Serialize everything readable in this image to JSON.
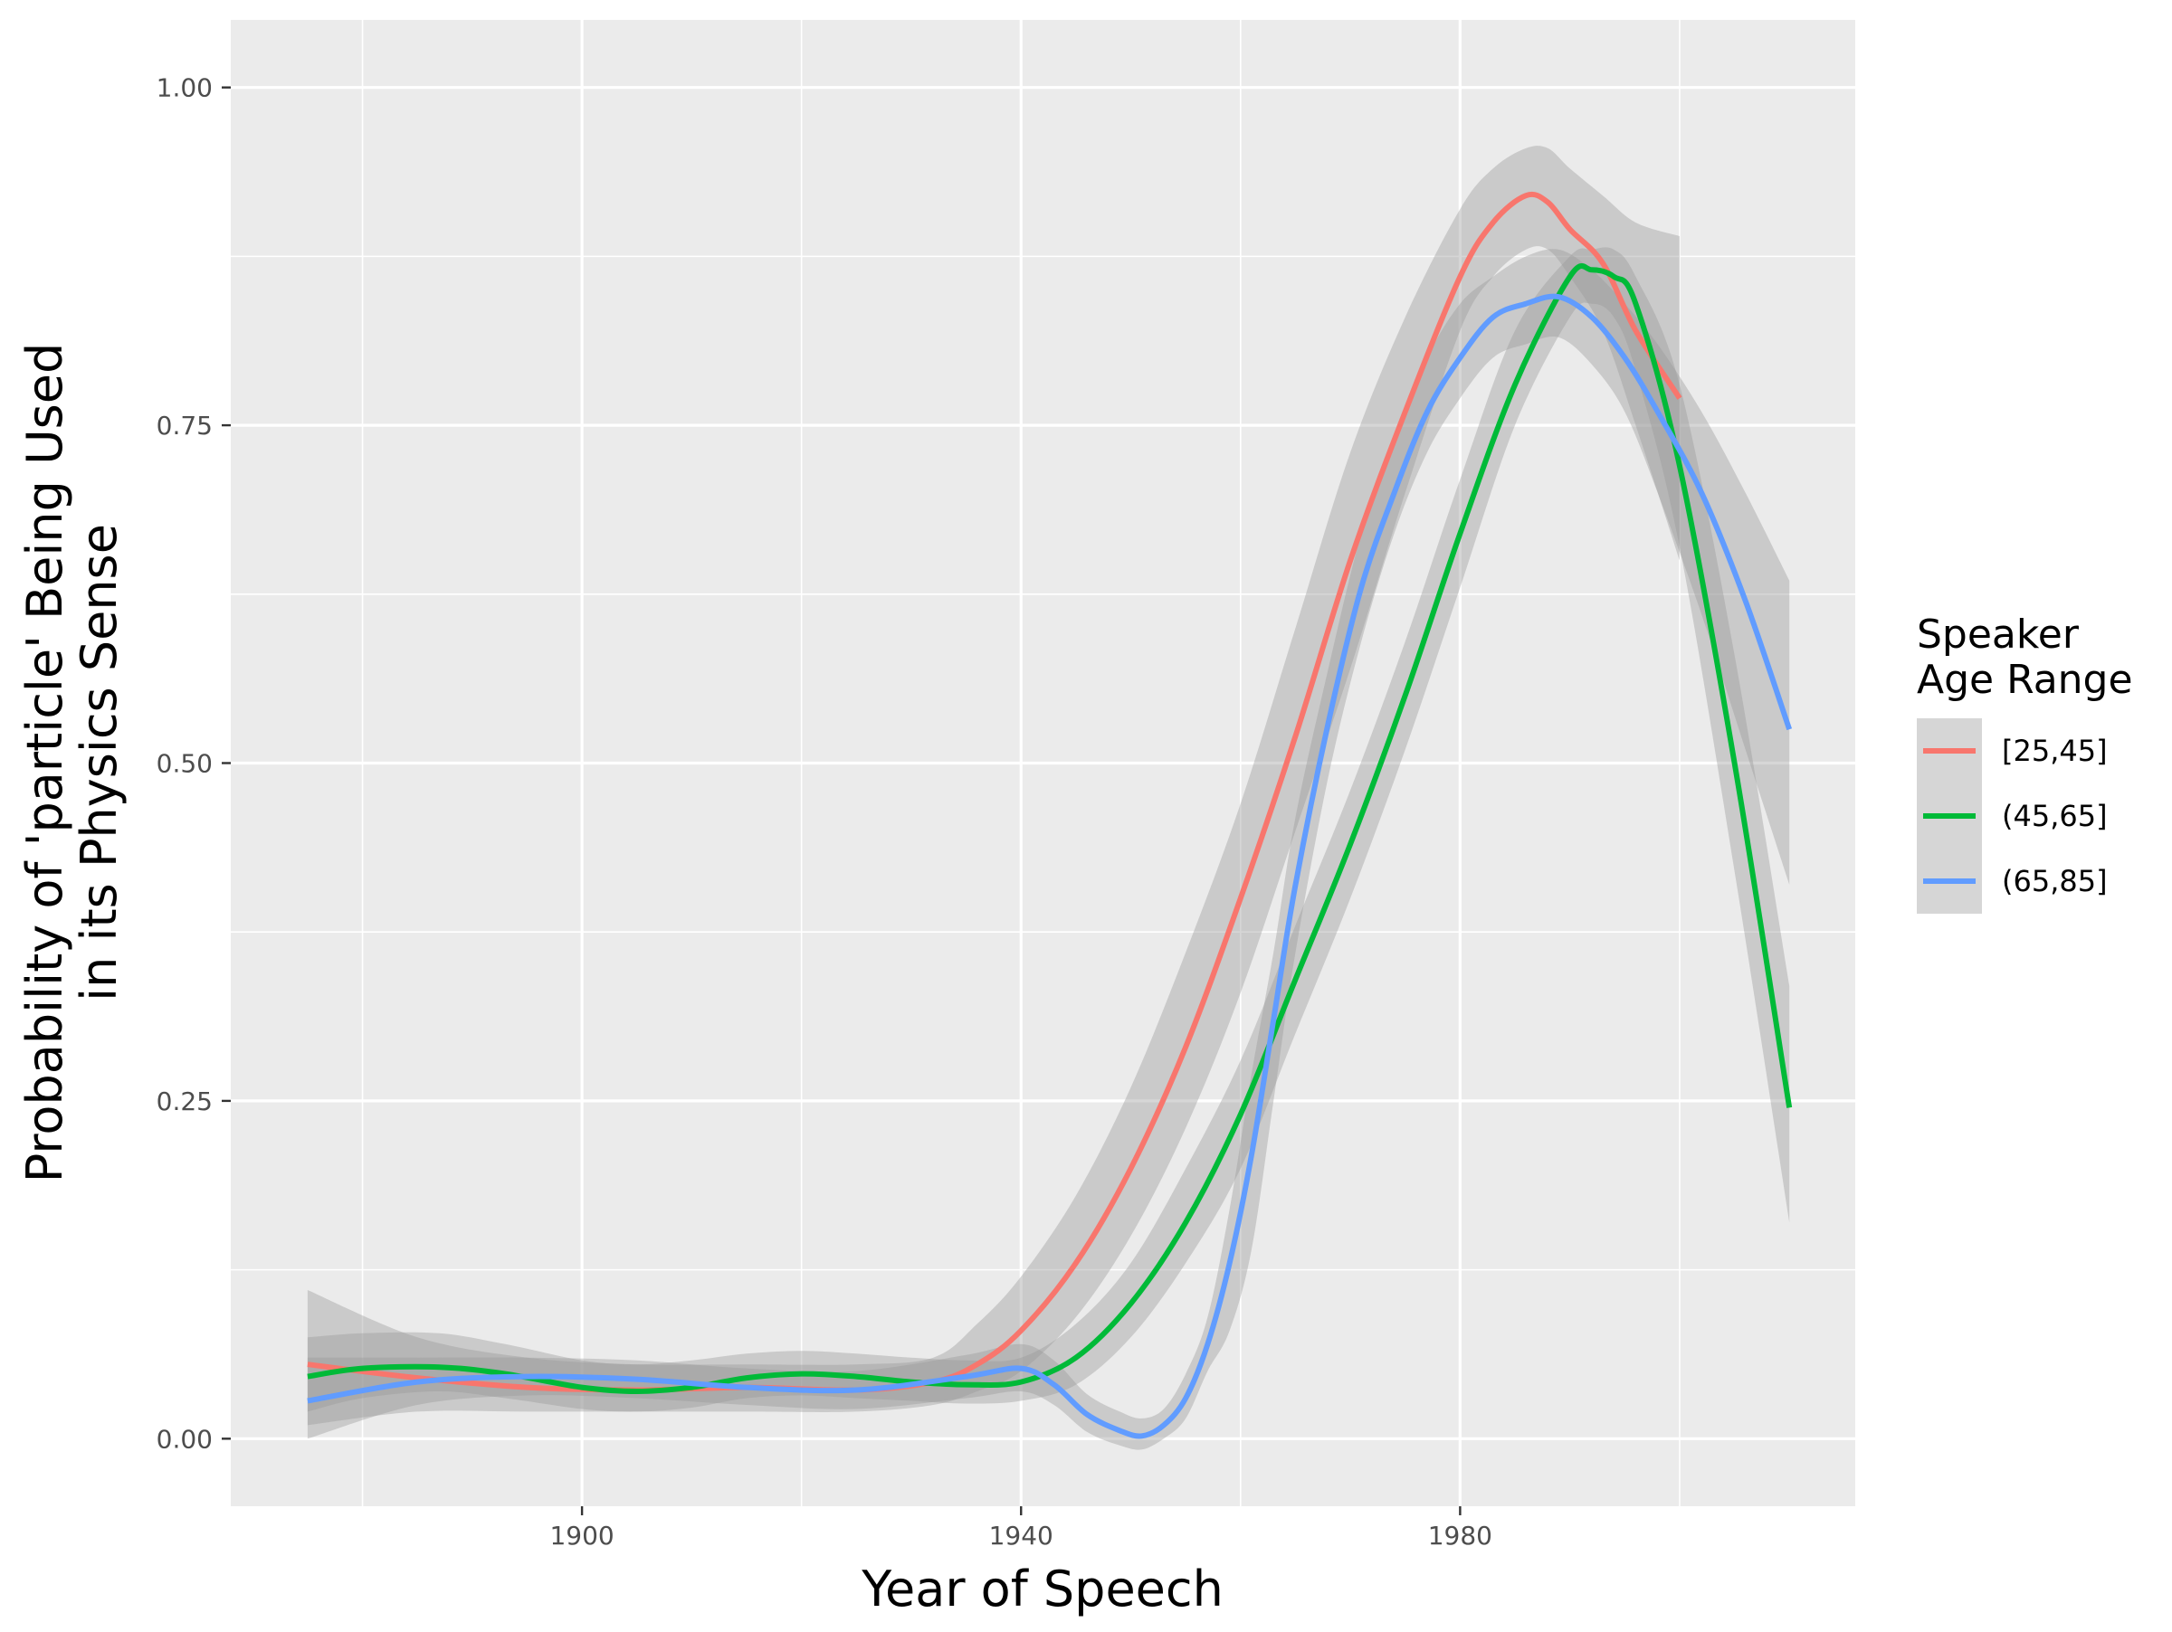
{
  "chart_data": {
    "type": "line",
    "title": "",
    "xlabel": "Year of Speech",
    "ylabel_lines": [
      "Probability of 'particle' Being Used",
      "in its Physics Sense"
    ],
    "xlim": [
      1868,
      2016
    ],
    "ylim": [
      -0.05,
      1.05
    ],
    "x_ticks": [
      1900,
      1940,
      1980
    ],
    "x_tick_labels": [
      "1900",
      "1940",
      "1980"
    ],
    "x_minor": [
      1880,
      1920,
      1960,
      2000
    ],
    "y_ticks": [
      0,
      0.25,
      0.5,
      0.75,
      1.0
    ],
    "y_tick_labels": [
      "0.00",
      "0.25",
      "0.50",
      "0.75",
      "1.00"
    ],
    "y_minor": [
      0.125,
      0.375,
      0.625,
      0.875
    ],
    "grid": true,
    "panel_background": "#EBEBEB",
    "band_color": "#999999",
    "legend": {
      "position": "right",
      "title_lines": [
        "Speaker",
        "Age Range"
      ]
    },
    "series": [
      {
        "name": "[25,45]",
        "color": "#F8766D",
        "x": [
          1875,
          1885,
          1895,
          1905,
          1915,
          1925,
          1932,
          1936,
          1940,
          1945,
          1950,
          1955,
          1960,
          1965,
          1970,
          1975,
          1980,
          1983,
          1986,
          1988,
          1990,
          1993,
          1996,
          2000
        ],
        "y": [
          0.055,
          0.045,
          0.038,
          0.036,
          0.038,
          0.036,
          0.042,
          0.055,
          0.08,
          0.13,
          0.2,
          0.29,
          0.4,
          0.52,
          0.65,
          0.76,
          0.86,
          0.9,
          0.92,
          0.915,
          0.895,
          0.87,
          0.82,
          0.77
        ],
        "lower": [
          0.01,
          0.02,
          0.02,
          0.02,
          0.02,
          0.02,
          0.025,
          0.035,
          0.05,
          0.09,
          0.15,
          0.23,
          0.33,
          0.45,
          0.57,
          0.7,
          0.82,
          0.86,
          0.88,
          0.88,
          0.86,
          0.82,
          0.75,
          0.65
        ],
        "upper": [
          0.11,
          0.075,
          0.06,
          0.055,
          0.055,
          0.055,
          0.06,
          0.085,
          0.12,
          0.18,
          0.26,
          0.36,
          0.47,
          0.6,
          0.73,
          0.83,
          0.91,
          0.94,
          0.955,
          0.955,
          0.94,
          0.92,
          0.9,
          0.89
        ]
      },
      {
        "name": "(45,65]",
        "color": "#00BA38",
        "x": [
          1875,
          1880,
          1887,
          1893,
          1900,
          1905,
          1910,
          1915,
          1920,
          1925,
          1930,
          1935,
          1940,
          1945,
          1950,
          1955,
          1960,
          1965,
          1970,
          1975,
          1980,
          1985,
          1990,
          1992,
          1994,
          1996,
          2000,
          2005,
          2010
        ],
        "y": [
          0.046,
          0.052,
          0.053,
          0.048,
          0.038,
          0.035,
          0.038,
          0.045,
          0.048,
          0.046,
          0.042,
          0.04,
          0.042,
          0.06,
          0.1,
          0.16,
          0.24,
          0.34,
          0.44,
          0.55,
          0.67,
          0.78,
          0.86,
          0.865,
          0.86,
          0.84,
          0.72,
          0.5,
          0.245
        ],
        "lower": [
          0.02,
          0.03,
          0.035,
          0.03,
          0.022,
          0.02,
          0.023,
          0.03,
          0.032,
          0.03,
          0.028,
          0.026,
          0.028,
          0.04,
          0.075,
          0.13,
          0.2,
          0.3,
          0.4,
          0.51,
          0.63,
          0.75,
          0.83,
          0.84,
          0.83,
          0.79,
          0.66,
          0.42,
          0.16
        ],
        "upper": [
          0.075,
          0.078,
          0.078,
          0.07,
          0.058,
          0.055,
          0.058,
          0.063,
          0.065,
          0.063,
          0.06,
          0.058,
          0.06,
          0.085,
          0.13,
          0.2,
          0.28,
          0.38,
          0.48,
          0.59,
          0.71,
          0.82,
          0.875,
          0.88,
          0.88,
          0.86,
          0.78,
          0.58,
          0.335
        ]
      },
      {
        "name": "(65,85]",
        "color": "#619CFF",
        "x": [
          1875,
          1885,
          1895,
          1905,
          1915,
          1925,
          1935,
          1940,
          1943,
          1946,
          1949,
          1951,
          1953,
          1955,
          1957,
          1959,
          1961,
          1963,
          1965,
          1968,
          1971,
          1974,
          1977,
          1980,
          1983,
          1986,
          1989,
          1992,
          1995,
          1998,
          2002,
          2006,
          2010
        ],
        "y": [
          0.028,
          0.042,
          0.046,
          0.044,
          0.038,
          0.036,
          0.046,
          0.052,
          0.04,
          0.018,
          0.006,
          0.002,
          0.01,
          0.03,
          0.07,
          0.13,
          0.21,
          0.31,
          0.41,
          0.53,
          0.63,
          0.7,
          0.76,
          0.8,
          0.83,
          0.84,
          0.845,
          0.83,
          0.8,
          0.76,
          0.7,
          0.62,
          0.525
        ],
        "lower": [
          0.0,
          0.025,
          0.032,
          0.03,
          0.025,
          0.022,
          0.03,
          0.035,
          0.025,
          0.005,
          -0.005,
          -0.008,
          0.0,
          0.015,
          0.05,
          0.08,
          0.14,
          0.25,
          0.36,
          0.49,
          0.59,
          0.67,
          0.73,
          0.77,
          0.8,
          0.81,
          0.815,
          0.795,
          0.76,
          0.7,
          0.61,
          0.51,
          0.41
        ],
        "upper": [
          0.06,
          0.06,
          0.06,
          0.058,
          0.052,
          0.05,
          0.062,
          0.07,
          0.058,
          0.033,
          0.02,
          0.015,
          0.022,
          0.048,
          0.09,
          0.17,
          0.27,
          0.36,
          0.46,
          0.57,
          0.67,
          0.74,
          0.8,
          0.84,
          0.86,
          0.875,
          0.88,
          0.865,
          0.84,
          0.81,
          0.76,
          0.7,
          0.635
        ]
      }
    ]
  }
}
